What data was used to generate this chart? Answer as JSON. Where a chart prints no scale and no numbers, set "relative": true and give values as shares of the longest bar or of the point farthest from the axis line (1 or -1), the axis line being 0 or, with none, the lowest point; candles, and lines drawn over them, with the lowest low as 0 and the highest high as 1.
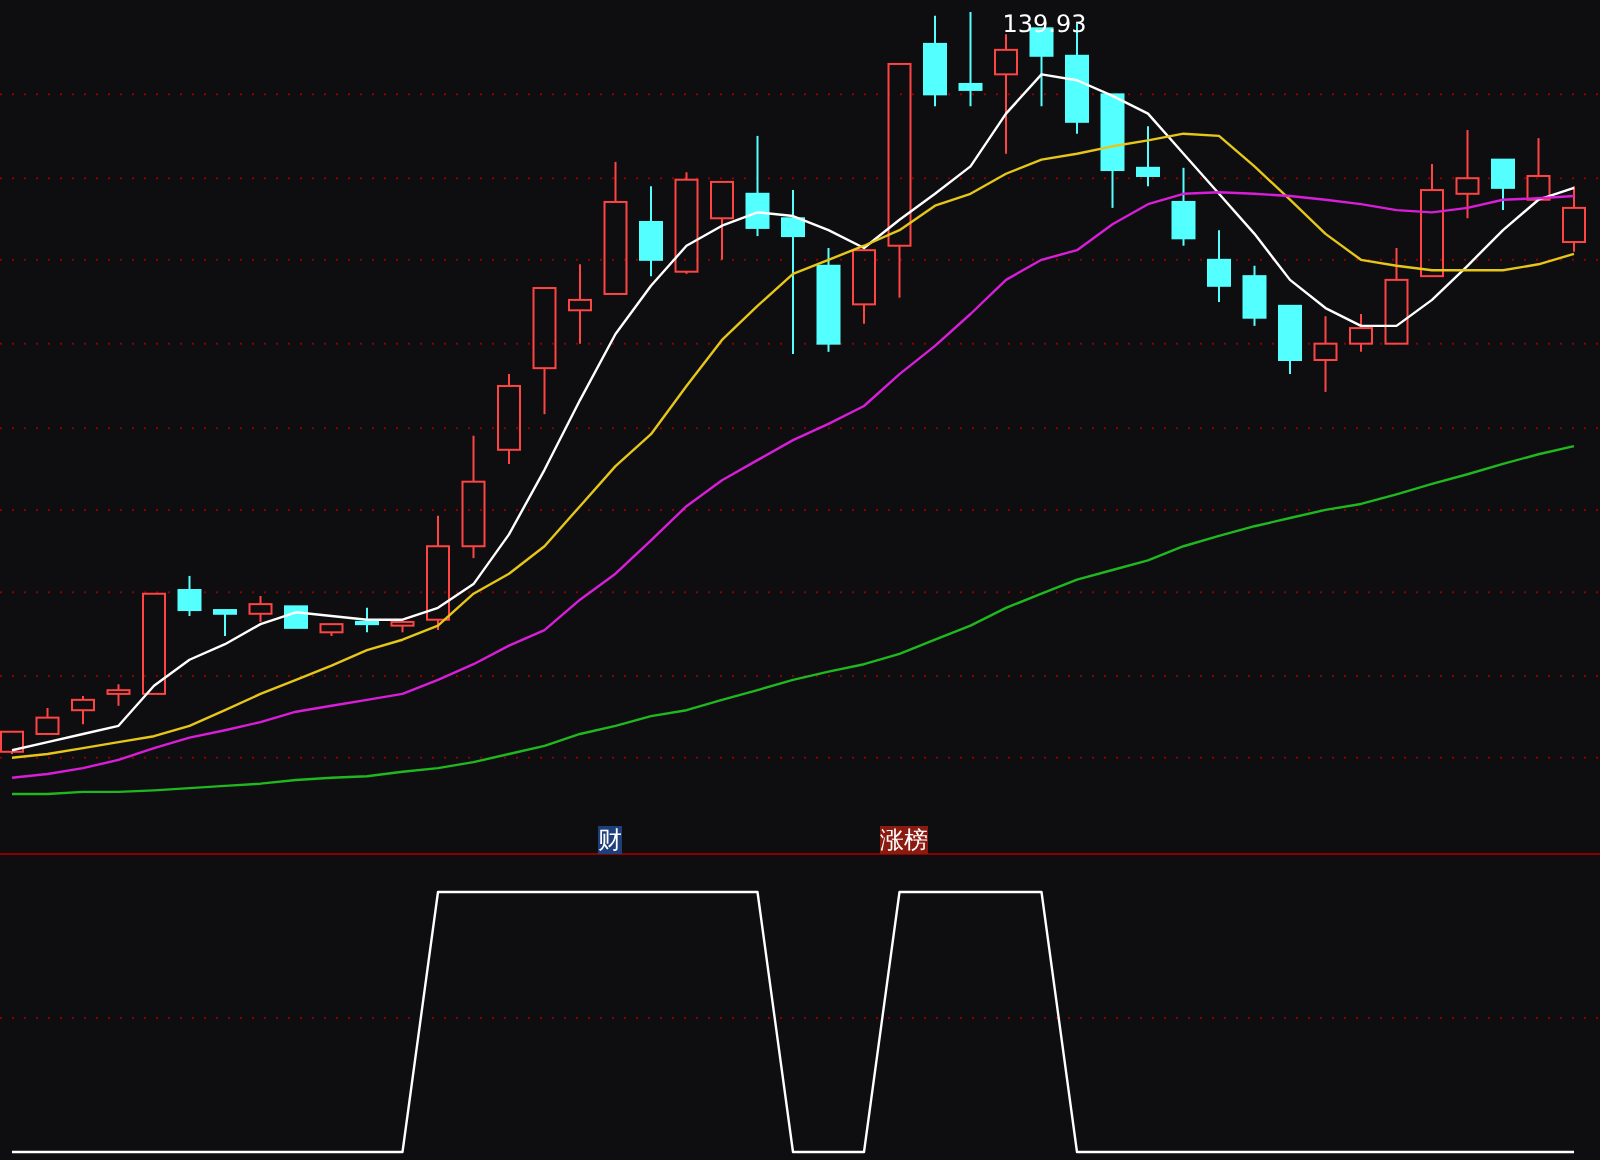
{
  "chart_data": [
    {
      "type": "candlestick",
      "relative": true,
      "categories": [
        null,
        null,
        null,
        null,
        null,
        null,
        null,
        null,
        null,
        null,
        null,
        null,
        null,
        null,
        null,
        null,
        null,
        null,
        null,
        null,
        null,
        null,
        null,
        null,
        null,
        null,
        null,
        null,
        null,
        null,
        null,
        null,
        null,
        null,
        null,
        null,
        null,
        null,
        null,
        null,
        null,
        null,
        null,
        null,
        null
      ],
      "ohlc": [
        [
          0.003,
          0.03,
          0,
          0.03
        ],
        [
          0.027,
          0.062,
          0.027,
          0.049
        ],
        [
          0.059,
          0.078,
          0.04,
          0.073
        ],
        [
          0.081,
          0.094,
          0.065,
          0.086
        ],
        [
          0.081,
          0.216,
          0.081,
          0.216
        ],
        [
          0.221,
          0.24,
          0.186,
          0.194
        ],
        [
          0.194,
          0.194,
          0.159,
          0.189
        ],
        [
          0.189,
          0.213,
          0.178,
          0.202
        ],
        [
          0.199,
          0.199,
          0.17,
          0.17
        ],
        [
          0.164,
          0.175,
          0.159,
          0.175
        ],
        [
          0.178,
          0.197,
          0.164,
          0.175
        ],
        [
          0.173,
          0.178,
          0.164,
          0.178
        ],
        [
          0.181,
          0.321,
          0.167,
          0.28
        ],
        [
          0.28,
          0.429,
          0.264,
          0.367
        ],
        [
          0.41,
          0.512,
          0.391,
          0.496
        ],
        [
          0.52,
          0.628,
          0.458,
          0.628
        ],
        [
          0.598,
          0.66,
          0.553,
          0.612
        ],
        [
          0.62,
          0.798,
          0.62,
          0.744
        ],
        [
          0.717,
          0.765,
          0.644,
          0.666
        ],
        [
          0.65,
          0.784,
          0.647,
          0.774
        ],
        [
          0.722,
          0.771,
          0.666,
          0.771
        ],
        [
          0.755,
          0.833,
          0.698,
          0.709
        ],
        [
          0.722,
          0.76,
          0.539,
          0.698
        ],
        [
          0.658,
          0.682,
          0.542,
          0.553
        ],
        [
          0.606,
          0.679,
          0.58,
          0.679
        ],
        [
          0.685,
          0.93,
          0.615,
          0.93
        ],
        [
          0.957,
          0.995,
          0.873,
          0.889
        ],
        [
          0.903,
          1,
          0.873,
          0.895
        ],
        [
          0.916,
          0.97,
          0.809,
          0.949
        ],
        [
          0.978,
          0.978,
          0.873,
          0.941
        ],
        [
          0.941,
          0.984,
          0.836,
          0.852
        ],
        [
          0.889,
          0.889,
          0.736,
          0.787
        ],
        [
          0.79,
          0.846,
          0.765,
          0.779
        ],
        [
          0.744,
          0.79,
          0.685,
          0.695
        ],
        [
          0.666,
          0.706,
          0.609,
          0.631
        ],
        [
          0.644,
          0.658,
          0.577,
          0.588
        ],
        [
          0.604,
          0.604,
          0.512,
          0.531
        ],
        [
          0.531,
          0.59,
          0.488,
          0.553
        ],
        [
          0.553,
          0.593,
          0.542,
          0.574
        ],
        [
          0.553,
          0.682,
          0.553,
          0.639
        ],
        [
          0.644,
          0.795,
          0.644,
          0.76
        ],
        [
          0.755,
          0.841,
          0.722,
          0.776
        ],
        [
          0.801,
          0.801,
          0.733,
          0.763
        ],
        [
          0.747,
          0.83,
          0.747,
          0.779
        ],
        [
          0.69,
          0.765,
          0.677,
          0.736
        ]
      ],
      "colors": [
        "#ff4444",
        "#ff4444",
        "#ff4444",
        "#ff4444",
        "#ff4444",
        "#54ffff",
        "#54ffff",
        "#ff4444",
        "#54ffff",
        "#ff4444",
        "#54ffff",
        "#ff4444",
        "#ff4444",
        "#ff4444",
        "#ff4444",
        "#ff4444",
        "#ff4444",
        "#ff4444",
        "#54ffff",
        "#ff4444",
        "#ff4444",
        "#54ffff",
        "#54ffff",
        "#54ffff",
        "#ff4444",
        "#ff4444",
        "#54ffff",
        "#54ffff",
        "#ff4444",
        "#54ffff",
        "#54ffff",
        "#54ffff",
        "#54ffff",
        "#54ffff",
        "#54ffff",
        "#54ffff",
        "#54ffff",
        "#ff4444",
        "#ff4444",
        "#ff4444",
        "#ff4444",
        "#ff4444",
        "#54ffff",
        "#ff4444",
        "#ff4444"
      ],
      "series": [
        {
          "type": "line",
          "color": "#ffffff",
          "values": [
            0.005,
            0.016,
            0.027,
            0.038,
            0.092,
            0.127,
            0.148,
            0.175,
            0.191,
            0.186,
            0.181,
            0.181,
            0.197,
            0.229,
            0.296,
            0.383,
            0.477,
            0.566,
            0.631,
            0.685,
            0.712,
            0.73,
            0.725,
            0.706,
            0.682,
            0.72,
            0.755,
            0.792,
            0.863,
            0.916,
            0.908,
            0.887,
            0.863,
            0.809,
            0.755,
            0.701,
            0.639,
            0.601,
            0.577,
            0.577,
            0.612,
            0.658,
            0.706,
            0.747,
            0.763
          ]
        },
        {
          "type": "line",
          "color": "#e6c619",
          "values": [
            -0.005,
            0,
            0.008,
            0.016,
            0.024,
            0.038,
            0.059,
            0.081,
            0.1,
            0.119,
            0.14,
            0.154,
            0.173,
            0.216,
            0.243,
            0.28,
            0.334,
            0.388,
            0.431,
            0.496,
            0.558,
            0.604,
            0.647,
            0.666,
            0.685,
            0.706,
            0.739,
            0.755,
            0.782,
            0.801,
            0.809,
            0.819,
            0.827,
            0.836,
            0.833,
            0.792,
            0.747,
            0.701,
            0.666,
            0.658,
            0.652,
            0.652,
            0.652,
            0.66,
            0.674
          ]
        },
        {
          "type": "line",
          "color": "#d81ed8",
          "values": [
            -0.032,
            -0.027,
            -0.019,
            -0.008,
            0.008,
            0.022,
            0.032,
            0.043,
            0.057,
            0.065,
            0.073,
            0.081,
            0.1,
            0.121,
            0.146,
            0.167,
            0.208,
            0.243,
            0.288,
            0.334,
            0.369,
            0.396,
            0.423,
            0.445,
            0.469,
            0.512,
            0.55,
            0.593,
            0.639,
            0.666,
            0.679,
            0.714,
            0.741,
            0.755,
            0.757,
            0.755,
            0.752,
            0.747,
            0.741,
            0.733,
            0.73,
            0.736,
            0.747,
            0.749,
            0.752
          ]
        },
        {
          "type": "line",
          "color": "#1fb81f",
          "values": [
            -0.054,
            -0.054,
            -0.051,
            -0.051,
            -0.049,
            -0.046,
            -0.043,
            -0.04,
            -0.035,
            -0.032,
            -0.03,
            -0.024,
            -0.019,
            -0.011,
            0,
            0.011,
            0.027,
            0.038,
            0.051,
            0.059,
            0.073,
            0.086,
            0.1,
            0.111,
            0.121,
            0.135,
            0.154,
            0.173,
            0.197,
            0.216,
            0.235,
            0.248,
            0.261,
            0.28,
            0.294,
            0.307,
            0.318,
            0.329,
            0.337,
            0.35,
            0.364,
            0.377,
            0.391,
            0.404,
            0.415
          ]
        }
      ],
      "ref_lines": [
        {
          "axis": "y",
          "value": 0.889,
          "color": "#8b0000",
          "line_style": "dotted"
        },
        {
          "axis": "y",
          "value": 0.776,
          "color": "#8b0000",
          "line_style": "dotted"
        },
        {
          "axis": "y",
          "value": 0.666,
          "color": "#8b0000",
          "line_style": "dotted"
        },
        {
          "axis": "y",
          "value": 0.553,
          "color": "#8b0000",
          "line_style": "dotted"
        },
        {
          "axis": "y",
          "value": 0.439,
          "color": "#8b0000",
          "line_style": "dotted"
        },
        {
          "axis": "y",
          "value": 0.329,
          "color": "#8b0000",
          "line_style": "dotted"
        },
        {
          "axis": "y",
          "value": 0.218,
          "color": "#8b0000",
          "line_style": "dotted"
        },
        {
          "axis": "y",
          "value": 0.105,
          "color": "#8b0000",
          "line_style": "dotted"
        },
        {
          "axis": "y",
          "value": -0.005,
          "color": "#8b0000",
          "line_style": "dotted"
        }
      ],
      "annotations": [
        "139.93"
      ]
    },
    {
      "type": "line",
      "relative": true,
      "categories": [
        null,
        null,
        null,
        null,
        null,
        null,
        null,
        null,
        null,
        null,
        null,
        null,
        null,
        null,
        null,
        null,
        null,
        null,
        null,
        null,
        null,
        null,
        null,
        null,
        null,
        null,
        null,
        null,
        null,
        null,
        null,
        null,
        null,
        null,
        null,
        null,
        null,
        null,
        null,
        null,
        null,
        null,
        null,
        null,
        null
      ],
      "values": [
        0,
        0,
        0,
        0,
        0,
        0,
        0,
        0,
        0,
        0,
        0,
        0,
        1,
        1,
        1,
        1,
        1,
        1,
        1,
        1,
        1,
        1,
        0,
        0,
        0,
        1,
        1,
        1,
        1,
        1,
        0,
        0,
        0,
        0,
        0,
        0,
        0,
        0,
        0,
        0,
        0,
        0,
        0,
        0,
        0
      ],
      "color": "#ffffff",
      "ref_lines": [
        {
          "axis": "y",
          "value": 0.515,
          "color": "#8b0000",
          "line_style": "dotted"
        }
      ],
      "annotations": [
        "财",
        "涨榜"
      ]
    }
  ]
}
